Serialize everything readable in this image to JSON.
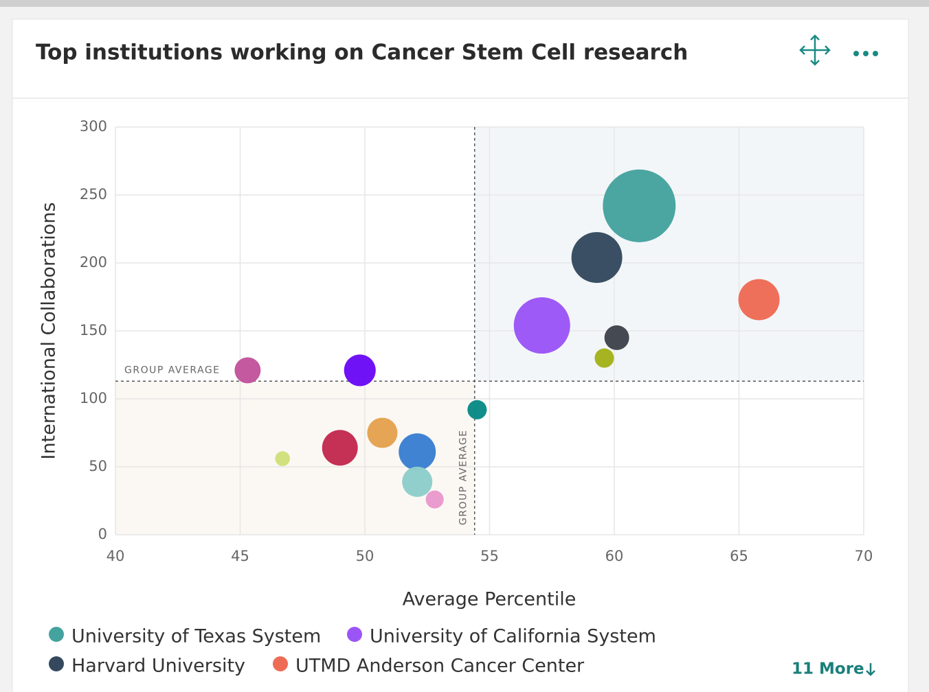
{
  "chart_data": {
    "type": "bubble",
    "title": "Top institutions working on Cancer Stem Cell research",
    "x_label": "Average Percentile",
    "y_label": "International Collaborations",
    "xlim": [
      40,
      70
    ],
    "xticks": [
      40,
      45,
      50,
      55,
      60,
      65,
      70
    ],
    "ylim": [
      0,
      300
    ],
    "yticks": [
      0,
      50,
      100,
      150,
      200,
      250,
      300
    ],
    "grid": true,
    "reference": {
      "x": 54.4,
      "y": 113,
      "label": "GROUP AVERAGE"
    },
    "series": [
      {
        "name": "University of Texas System",
        "color": "#45a39f",
        "x": [
          61.0
        ],
        "values": [
          242
        ],
        "sizes": [
          312
        ]
      },
      {
        "name": "University of California System",
        "color": "#9b55f7",
        "x": [
          57.1
        ],
        "values": [
          154
        ],
        "sizes": [
          187
        ]
      },
      {
        "name": "Harvard University",
        "color": "#34495e",
        "x": [
          59.3
        ],
        "values": [
          204
        ],
        "sizes": [
          152
        ]
      },
      {
        "name": "UTMD Anderson Cancer Center",
        "color": "#ee6b55",
        "x": [
          65.8
        ],
        "values": [
          173
        ],
        "sizes": [
          100
        ]
      },
      {
        "color": "#3f444c",
        "x": [
          60.1
        ],
        "values": [
          145
        ],
        "sizes": [
          36
        ]
      },
      {
        "color": "#a4b21b",
        "x": [
          59.6
        ],
        "values": [
          130
        ],
        "sizes": [
          22
        ]
      },
      {
        "color": "#c2549c",
        "x": [
          45.3
        ],
        "values": [
          121
        ],
        "sizes": [
          40
        ]
      },
      {
        "color": "#6a0af5",
        "x": [
          49.8
        ],
        "values": [
          121
        ],
        "sizes": [
          59
        ]
      },
      {
        "color": "#0a8a86",
        "x": [
          54.5
        ],
        "values": [
          92
        ],
        "sizes": [
          22
        ]
      },
      {
        "color": "#e5a24e",
        "x": [
          50.7
        ],
        "values": [
          75
        ],
        "sizes": [
          54
        ]
      },
      {
        "color": "#c3294f",
        "x": [
          49.0
        ],
        "values": [
          64
        ],
        "sizes": [
          75
        ]
      },
      {
        "color": "#3a7fd2",
        "x": [
          52.1
        ],
        "values": [
          61
        ],
        "sizes": [
          81
        ]
      },
      {
        "color": "#cfe07a",
        "x": [
          46.7
        ],
        "values": [
          56
        ],
        "sizes": [
          13
        ]
      },
      {
        "color": "#8dcdca",
        "x": [
          52.1
        ],
        "values": [
          39
        ],
        "sizes": [
          54
        ]
      },
      {
        "color": "#e999cc",
        "x": [
          52.8
        ],
        "values": [
          26
        ],
        "sizes": [
          19
        ]
      }
    ],
    "more_label": "11 More"
  }
}
